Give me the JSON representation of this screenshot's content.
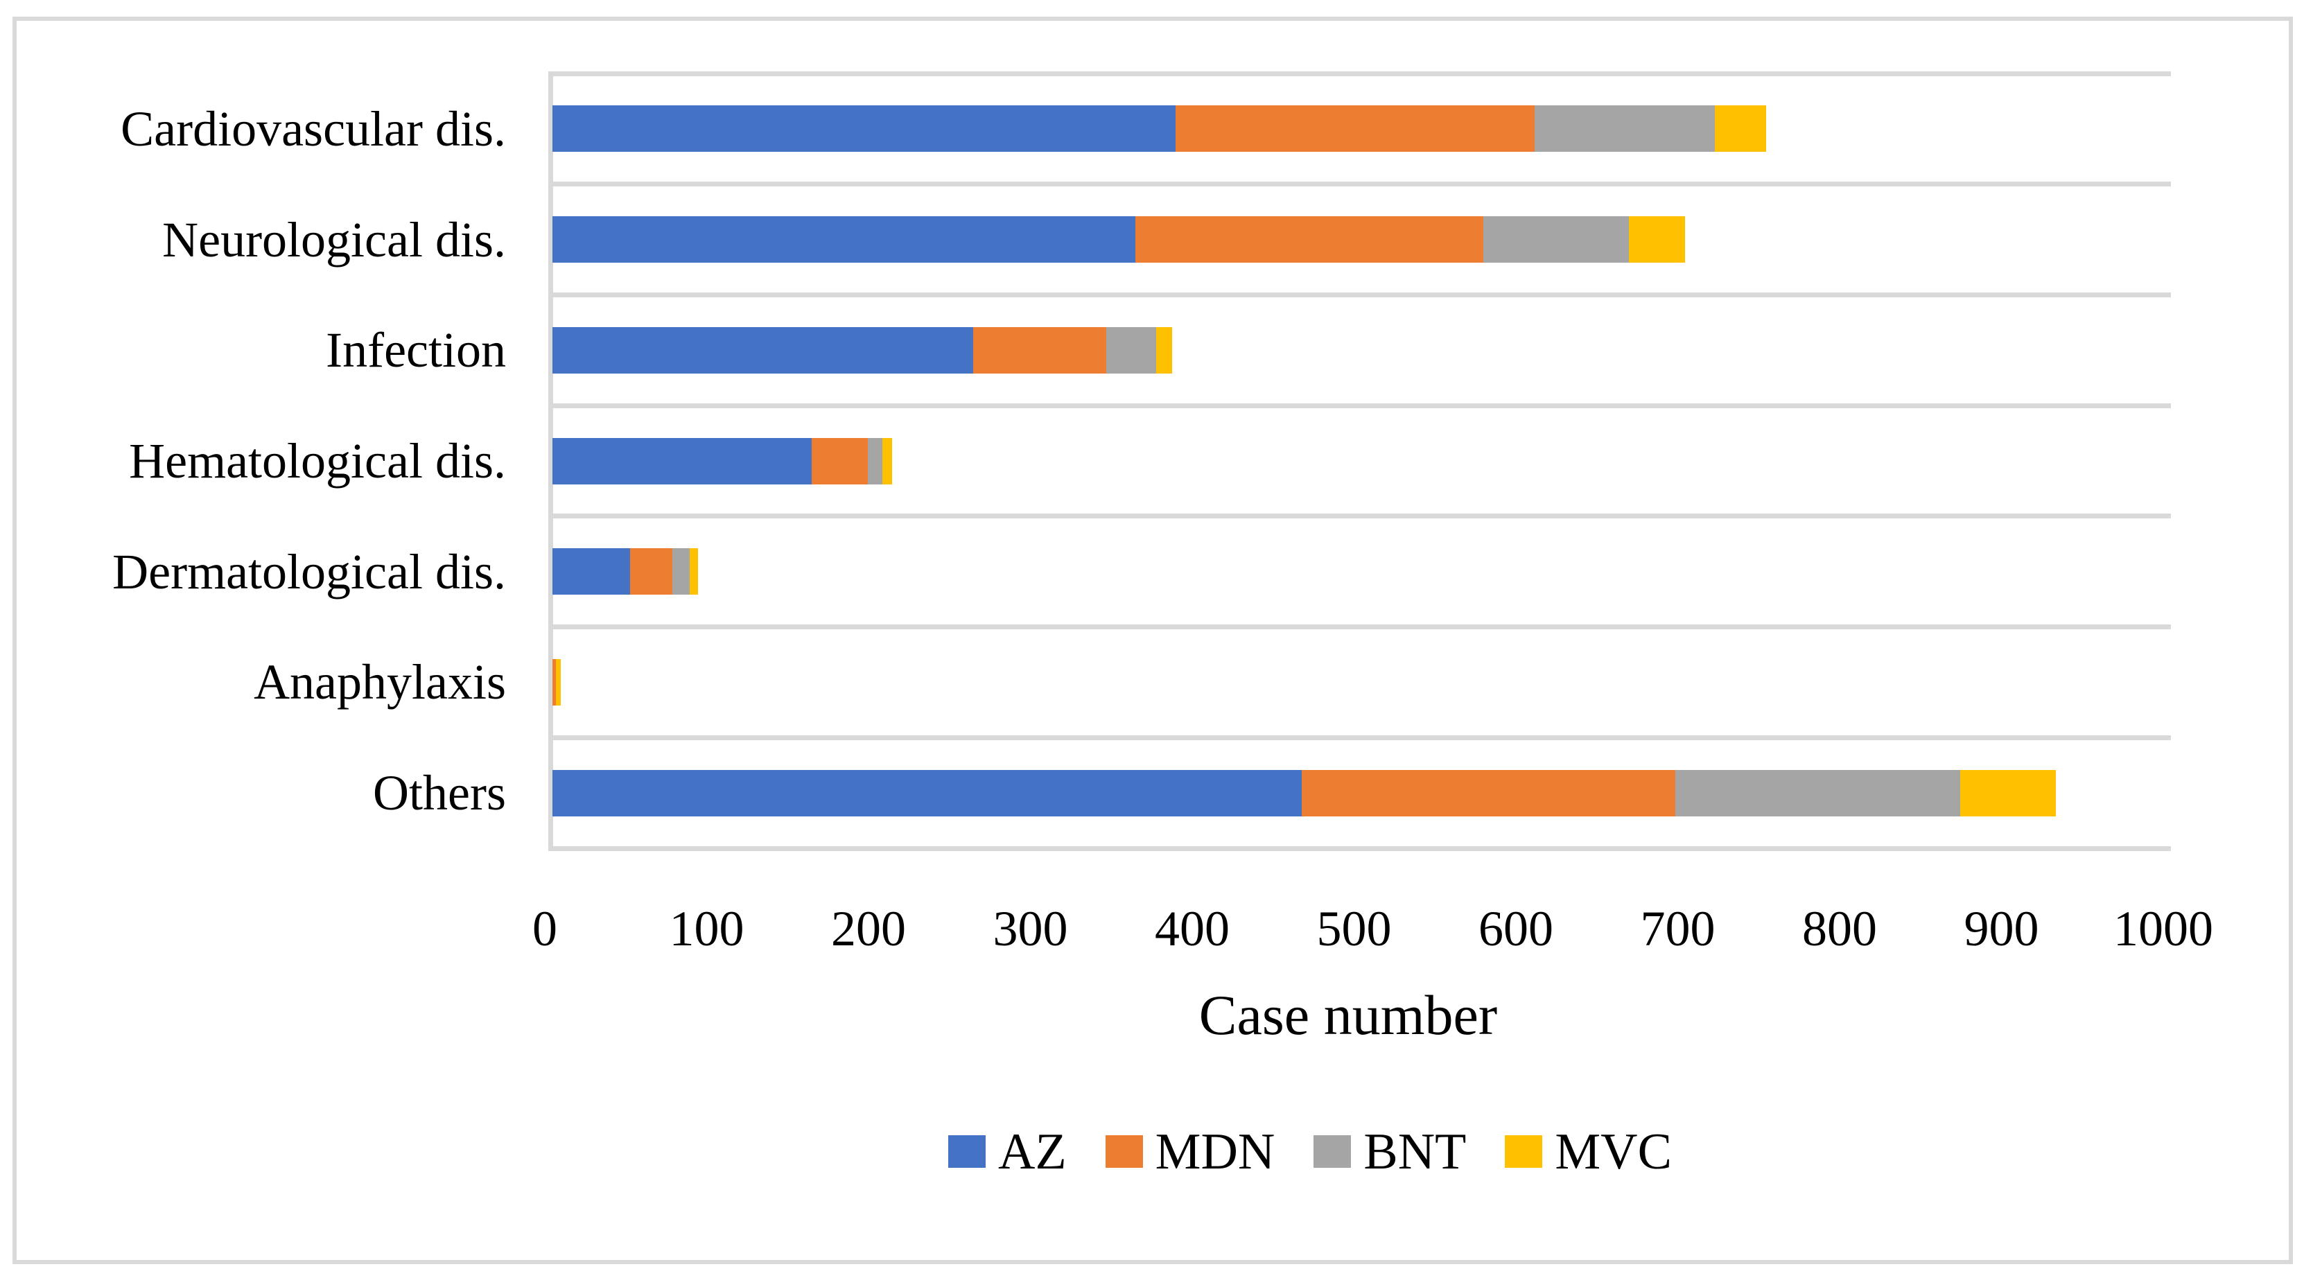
{
  "figure": {
    "background_color": "#FFFFFF",
    "border_color": "#D9D9D9"
  },
  "chart_data": {
    "type": "bar",
    "orientation": "horizontal",
    "stacked": true,
    "title": "",
    "xlabel": "Case number",
    "ylabel": "",
    "xlim": [
      0,
      1000
    ],
    "x_ticks": [
      "0",
      "100",
      "200",
      "300",
      "400",
      "500",
      "600",
      "700",
      "800",
      "900",
      "1000"
    ],
    "grid": "category-separator lines on, light gray",
    "grid_color": "#D9D9D9",
    "axis_line_color": "#D9D9D9",
    "legend_position": "bottom-center",
    "categories": [
      "Cardiovascular dis.",
      "Neurological dis.",
      "Infection",
      "Hematological dis.",
      "Dermatological dis.",
      "Anaphylaxis",
      "Others"
    ],
    "series": [
      {
        "name": "AZ",
        "color": "#4472C4",
        "values": [
          385,
          360,
          260,
          160,
          48,
          0,
          463
        ]
      },
      {
        "name": "MDN",
        "color": "#ED7D31",
        "values": [
          222,
          215,
          82,
          35,
          26,
          2,
          231
        ]
      },
      {
        "name": "BNT",
        "color": "#A5A5A5",
        "values": [
          111,
          90,
          31,
          9,
          11,
          0,
          176
        ]
      },
      {
        "name": "MVC",
        "color": "#FFC000",
        "values": [
          32,
          35,
          10,
          6,
          5,
          3,
          59
        ]
      }
    ]
  }
}
